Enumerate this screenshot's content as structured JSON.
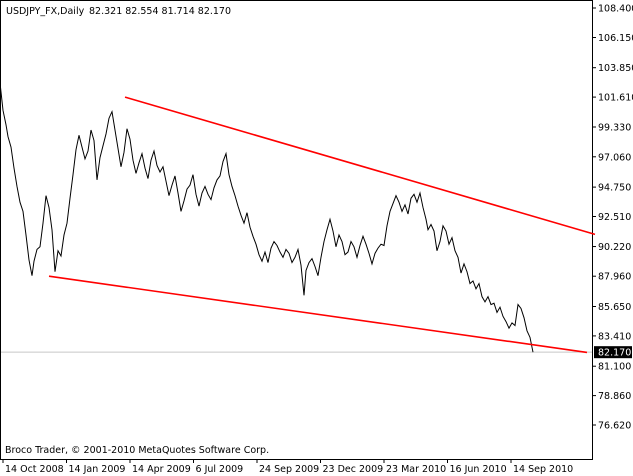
{
  "header": {
    "symbol": "USDJPY_FX,Daily",
    "ohlc": "82.321 82.554 81.714 82.170"
  },
  "copyright": "Broco Trader, © 2001-2010 MetaQuotes Software Corp.",
  "current_price_label": "82.170",
  "colors": {
    "price_line": "#000000",
    "trendline": "#ff0000",
    "grid_line": "#c8c8c8",
    "price_tag_bg": "#000000",
    "axis": "#000000"
  },
  "chart_data": {
    "type": "line",
    "title": "USDJPY_FX,Daily",
    "xlabel": "",
    "ylabel": "",
    "ylim": [
      76.62,
      108.4
    ],
    "yticks": [
      "108.400",
      "106.150",
      "103.850",
      "101.610",
      "99.330",
      "97.060",
      "94.750",
      "92.510",
      "90.220",
      "87.960",
      "85.650",
      "83.410",
      "81.100",
      "78.860",
      "76.620"
    ],
    "xticks": [
      "14 Oct 2008",
      "14 Jan 2009",
      "14 Apr 2009",
      "6 Jul 2009",
      "24 Sep 2009",
      "23 Dec 2009",
      "23 Mar 2010",
      "16 Jun 2010",
      "14 Sep 2010"
    ],
    "series": [
      {
        "type": "close",
        "points": [
          [
            0,
            102.7
          ],
          [
            3,
            100.6
          ],
          [
            6,
            99.5
          ],
          [
            8,
            98.6
          ],
          [
            11,
            97.8
          ],
          [
            14,
            96.2
          ],
          [
            17,
            94.8
          ],
          [
            20,
            93.6
          ],
          [
            23,
            92.9
          ],
          [
            26,
            91.1
          ],
          [
            29,
            89.2
          ],
          [
            32,
            88.0
          ],
          [
            34,
            89.1
          ],
          [
            37,
            90.0
          ],
          [
            40,
            90.2
          ],
          [
            43,
            92.0
          ],
          [
            46,
            94.1
          ],
          [
            49,
            93.2
          ],
          [
            52,
            91.5
          ],
          [
            55,
            88.3
          ],
          [
            58,
            89.9
          ],
          [
            61,
            89.5
          ],
          [
            64,
            91.1
          ],
          [
            67,
            92.0
          ],
          [
            70,
            93.9
          ],
          [
            73,
            95.7
          ],
          [
            76,
            97.6
          ],
          [
            79,
            98.7
          ],
          [
            82,
            97.8
          ],
          [
            85,
            96.9
          ],
          [
            88,
            97.5
          ],
          [
            91,
            99.1
          ],
          [
            94,
            98.3
          ],
          [
            97,
            95.3
          ],
          [
            100,
            97.0
          ],
          [
            103,
            97.9
          ],
          [
            106,
            98.8
          ],
          [
            109,
            100.0
          ],
          [
            112,
            100.5
          ],
          [
            115,
            99.1
          ],
          [
            118,
            97.7
          ],
          [
            121,
            96.3
          ],
          [
            124,
            97.4
          ],
          [
            127,
            99.2
          ],
          [
            130,
            98.4
          ],
          [
            133,
            96.8
          ],
          [
            136,
            95.8
          ],
          [
            139,
            96.6
          ],
          [
            142,
            97.3
          ],
          [
            145,
            96.2
          ],
          [
            148,
            95.4
          ],
          [
            151,
            96.8
          ],
          [
            154,
            97.5
          ],
          [
            157,
            96.4
          ],
          [
            160,
            95.9
          ],
          [
            163,
            96.3
          ],
          [
            166,
            95.2
          ],
          [
            169,
            94.1
          ],
          [
            172,
            94.9
          ],
          [
            175,
            95.6
          ],
          [
            178,
            94.3
          ],
          [
            181,
            92.9
          ],
          [
            184,
            93.7
          ],
          [
            187,
            94.6
          ],
          [
            190,
            94.9
          ],
          [
            193,
            95.7
          ],
          [
            196,
            94.2
          ],
          [
            199,
            93.3
          ],
          [
            202,
            94.3
          ],
          [
            205,
            94.8
          ],
          [
            208,
            94.2
          ],
          [
            211,
            93.8
          ],
          [
            214,
            94.7
          ],
          [
            217,
            95.3
          ],
          [
            220,
            95.6
          ],
          [
            223,
            96.7
          ],
          [
            226,
            97.3
          ],
          [
            229,
            95.7
          ],
          [
            232,
            94.8
          ],
          [
            235,
            94.1
          ],
          [
            238,
            93.3
          ],
          [
            241,
            92.6
          ],
          [
            244,
            92.0
          ],
          [
            247,
            92.8
          ],
          [
            250,
            91.7
          ],
          [
            253,
            91.0
          ],
          [
            256,
            90.4
          ],
          [
            259,
            89.6
          ],
          [
            262,
            89.1
          ],
          [
            265,
            89.8
          ],
          [
            268,
            89.0
          ],
          [
            271,
            90.1
          ],
          [
            274,
            90.6
          ],
          [
            277,
            90.3
          ],
          [
            280,
            89.8
          ],
          [
            283,
            89.4
          ],
          [
            286,
            90.0
          ],
          [
            289,
            89.7
          ],
          [
            292,
            89.0
          ],
          [
            295,
            89.4
          ],
          [
            298,
            90.0
          ],
          [
            301,
            88.8
          ],
          [
            304,
            86.5
          ],
          [
            306,
            88.4
          ],
          [
            309,
            89.0
          ],
          [
            312,
            89.3
          ],
          [
            315,
            88.7
          ],
          [
            318,
            88.0
          ],
          [
            321,
            89.4
          ],
          [
            324,
            90.6
          ],
          [
            327,
            91.5
          ],
          [
            330,
            92.3
          ],
          [
            333,
            91.4
          ],
          [
            336,
            90.2
          ],
          [
            339,
            91.1
          ],
          [
            342,
            90.6
          ],
          [
            345,
            89.6
          ],
          [
            348,
            89.8
          ],
          [
            351,
            90.6
          ],
          [
            354,
            90.2
          ],
          [
            357,
            89.4
          ],
          [
            360,
            90.3
          ],
          [
            363,
            91.0
          ],
          [
            366,
            90.4
          ],
          [
            369,
            89.7
          ],
          [
            372,
            88.9
          ],
          [
            375,
            89.7
          ],
          [
            378,
            90.1
          ],
          [
            381,
            90.4
          ],
          [
            384,
            90.3
          ],
          [
            387,
            91.8
          ],
          [
            390,
            92.9
          ],
          [
            393,
            93.5
          ],
          [
            396,
            94.1
          ],
          [
            399,
            93.6
          ],
          [
            402,
            92.9
          ],
          [
            405,
            93.4
          ],
          [
            408,
            92.7
          ],
          [
            411,
            93.9
          ],
          [
            414,
            94.2
          ],
          [
            417,
            93.6
          ],
          [
            420,
            94.3
          ],
          [
            423,
            93.2
          ],
          [
            426,
            92.3
          ],
          [
            428,
            91.5
          ],
          [
            431,
            91.9
          ],
          [
            434,
            91.4
          ],
          [
            437,
            89.9
          ],
          [
            440,
            90.6
          ],
          [
            443,
            91.8
          ],
          [
            446,
            91.4
          ],
          [
            449,
            90.4
          ],
          [
            452,
            90.9
          ],
          [
            455,
            89.9
          ],
          [
            458,
            89.4
          ],
          [
            461,
            88.2
          ],
          [
            464,
            88.9
          ],
          [
            467,
            88.3
          ],
          [
            470,
            87.4
          ],
          [
            473,
            87.6
          ],
          [
            476,
            87.0
          ],
          [
            479,
            87.4
          ],
          [
            482,
            86.4
          ],
          [
            485,
            86.0
          ],
          [
            488,
            86.4
          ],
          [
            491,
            85.8
          ],
          [
            494,
            85.9
          ],
          [
            497,
            85.2
          ],
          [
            500,
            85.6
          ],
          [
            503,
            84.9
          ],
          [
            506,
            84.5
          ],
          [
            509,
            84.0
          ],
          [
            512,
            84.4
          ],
          [
            515,
            84.2
          ],
          [
            518,
            85.8
          ],
          [
            521,
            85.5
          ],
          [
            524,
            84.8
          ],
          [
            527,
            83.8
          ],
          [
            530,
            83.3
          ],
          [
            533,
            82.17
          ]
        ]
      }
    ],
    "trendlines": [
      {
        "name": "upper",
        "from": [
          125,
          101.61
        ],
        "to": [
          595,
          91.15
        ]
      },
      {
        "name": "lower",
        "from": [
          49,
          87.96
        ],
        "to": [
          587,
          82.15
        ]
      }
    ],
    "current_price": 82.17,
    "grid": false
  }
}
